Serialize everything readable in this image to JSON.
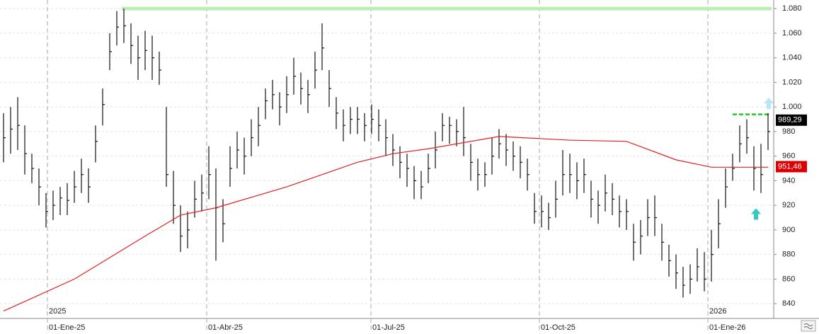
{
  "chart_data": {
    "type": "hlc",
    "x": [
      0,
      1,
      2,
      3,
      4,
      5,
      6,
      7,
      8,
      9,
      10,
      11,
      12,
      13,
      14,
      15,
      16,
      17,
      18,
      19,
      20,
      21,
      22,
      23,
      24,
      25,
      26,
      27,
      28,
      29,
      30,
      31,
      32,
      33,
      34,
      35,
      36,
      37,
      38,
      39,
      40,
      41,
      42,
      43,
      44,
      45,
      46,
      47,
      48,
      49,
      50,
      51,
      52,
      53,
      54,
      55,
      56,
      57,
      58,
      59,
      60,
      61,
      62,
      63,
      64,
      65,
      66,
      67,
      68,
      69,
      70,
      71,
      72,
      73,
      74,
      75,
      76,
      77,
      78,
      79,
      80,
      81,
      82,
      83,
      84,
      85,
      86,
      87,
      88,
      89,
      90,
      91,
      92,
      93,
      94,
      95,
      96,
      97,
      98,
      99,
      100,
      101,
      102,
      103,
      104,
      105,
      106,
      107,
      108
    ],
    "high": [
      995,
      1000,
      1008,
      985,
      962,
      950,
      930,
      932,
      935,
      938,
      948,
      958,
      950,
      985,
      1015,
      1060,
      1078,
      1080,
      1068,
      1058,
      1062,
      1058,
      1045,
      1000,
      948,
      920,
      915,
      940,
      945,
      968,
      950,
      925,
      968,
      980,
      975,
      990,
      1000,
      1015,
      1022,
      1012,
      1025,
      1040,
      1028,
      1022,
      1045,
      1068,
      1030,
      1008,
      998,
      1000,
      1000,
      995,
      1002,
      998,
      990,
      978,
      968,
      962,
      952,
      948,
      962,
      980,
      995,
      992,
      990,
      1000,
      970,
      958,
      955,
      975,
      982,
      978,
      972,
      968,
      958,
      930,
      928,
      922,
      940,
      965,
      962,
      955,
      958,
      940,
      932,
      945,
      938,
      928,
      925,
      905,
      908,
      925,
      928,
      905,
      888,
      880,
      870,
      872,
      885,
      882,
      900,
      925,
      950,
      962,
      985,
      990,
      968,
      970,
      995
    ],
    "low": [
      955,
      962,
      965,
      945,
      938,
      920,
      902,
      908,
      912,
      912,
      922,
      930,
      922,
      955,
      985,
      1030,
      1050,
      1052,
      1035,
      1022,
      1030,
      1022,
      1018,
      935,
      905,
      882,
      885,
      910,
      915,
      925,
      875,
      890,
      935,
      950,
      945,
      960,
      968,
      990,
      998,
      985,
      995,
      1010,
      1002,
      995,
      1015,
      1030,
      1000,
      982,
      972,
      978,
      978,
      972,
      978,
      972,
      960,
      952,
      942,
      935,
      925,
      925,
      938,
      950,
      972,
      970,
      968,
      960,
      940,
      932,
      935,
      945,
      958,
      952,
      948,
      942,
      932,
      905,
      902,
      900,
      910,
      928,
      930,
      925,
      930,
      910,
      905,
      915,
      912,
      902,
      900,
      875,
      880,
      895,
      895,
      875,
      862,
      852,
      845,
      848,
      858,
      850,
      858,
      885,
      918,
      940,
      955,
      962,
      932,
      930,
      965
    ],
    "close": [
      975,
      982,
      985,
      962,
      950,
      935,
      915,
      920,
      926,
      924,
      935,
      945,
      935,
      972,
      1002,
      1045,
      1065,
      1066,
      1050,
      1040,
      1046,
      1040,
      1030,
      945,
      920,
      895,
      900,
      925,
      930,
      945,
      918,
      905,
      950,
      965,
      960,
      975,
      985,
      1005,
      1010,
      1000,
      1010,
      1025,
      1015,
      1010,
      1030,
      1048,
      1015,
      995,
      985,
      990,
      990,
      985,
      990,
      985,
      975,
      965,
      955,
      950,
      940,
      935,
      950,
      965,
      985,
      985,
      980,
      975,
      955,
      945,
      945,
      960,
      970,
      965,
      960,
      955,
      945,
      915,
      915,
      910,
      925,
      945,
      945,
      940,
      945,
      925,
      920,
      930,
      925,
      915,
      915,
      890,
      895,
      910,
      910,
      890,
      875,
      865,
      855,
      860,
      870,
      860,
      880,
      905,
      935,
      950,
      970,
      975,
      950,
      945,
      980
    ],
    "color": "#111111",
    "ma": {
      "color": "#dd2222",
      "x": [
        0,
        10,
        20,
        25,
        30,
        40,
        50,
        55,
        60,
        70,
        80,
        88,
        95,
        100,
        104,
        108
      ],
      "values": [
        834,
        860,
        895,
        912,
        918,
        935,
        955,
        962,
        966,
        976,
        973,
        972,
        957,
        951,
        951,
        951
      ]
    },
    "xlim": [
      -0.5,
      108.8
    ],
    "ylim": [
      828,
      1087
    ],
    "yticks": [
      840,
      860,
      880,
      900,
      920,
      940,
      960,
      980,
      {
        "value": 1000,
        "label": "1.000"
      },
      {
        "value": 1020,
        "label": "1.020"
      },
      {
        "value": 1040,
        "label": "1.040"
      },
      {
        "value": 1060,
        "label": "1.060"
      },
      {
        "value": 1080,
        "label": "1.080"
      }
    ],
    "xticks": [
      {
        "value": 6.2,
        "label": "01-Ene-25"
      },
      {
        "value": 28.7,
        "label": "01-Abr-25"
      },
      {
        "value": 51.9,
        "label": "01-Jul-25"
      },
      {
        "value": 75.7,
        "label": "01-Oct-25"
      },
      {
        "value": 99.5,
        "label": "01-Ene-26"
      }
    ],
    "year_labels": [
      {
        "value": 6.2,
        "label": "2025"
      },
      {
        "value": 99.5,
        "label": "2026"
      }
    ],
    "levels": [
      {
        "value": 1080,
        "x": [
          16.7,
          108.5
        ],
        "color": "#b8f0b0",
        "style": "solid"
      },
      {
        "value": 994,
        "x": [
          103,
          108.3
        ],
        "color": "#22cc22",
        "style": "dashed"
      }
    ],
    "price_tags": [
      {
        "value": 989.29,
        "label": "989,29",
        "color": "#000000"
      },
      {
        "value": 951.46,
        "label": "951,46",
        "color": "#dd0000"
      }
    ],
    "markers": [
      {
        "x": 106.3,
        "value": 913,
        "color": "#33c8c0"
      },
      {
        "x": 108.1,
        "value": 1003,
        "color": "#b8e4f8"
      }
    ],
    "grid": true
  }
}
